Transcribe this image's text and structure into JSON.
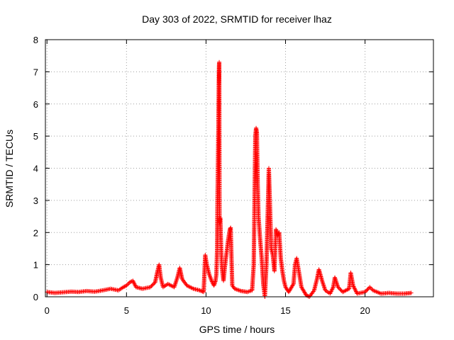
{
  "chart_data": {
    "type": "scatter",
    "title": "Day 303 of 2022, SRMTID for receiver lhaz",
    "xlabel": "GPS time / hours",
    "ylabel": "SRMTID / TECUs",
    "xlim": [
      -0.1,
      24.3
    ],
    "ylim": [
      0,
      8
    ],
    "xticks": [
      0,
      5,
      10,
      15,
      20
    ],
    "xtick_labels": [
      "0",
      "5",
      "10",
      "15",
      "20"
    ],
    "yticks": [
      0,
      1,
      2,
      3,
      4,
      5,
      6,
      7,
      8
    ],
    "ytick_labels": [
      "0",
      "1",
      "2",
      "3",
      "4",
      "5",
      "6",
      "7",
      "8"
    ],
    "grid": true,
    "marker": "plus",
    "color": "#ff0000",
    "series": [
      {
        "name": "SRMTID",
        "anchors": [
          [
            0.0,
            0.15
          ],
          [
            0.5,
            0.12
          ],
          [
            1.0,
            0.14
          ],
          [
            1.5,
            0.16
          ],
          [
            2.0,
            0.15
          ],
          [
            2.5,
            0.18
          ],
          [
            3.0,
            0.16
          ],
          [
            3.5,
            0.2
          ],
          [
            4.0,
            0.25
          ],
          [
            4.5,
            0.2
          ],
          [
            4.8,
            0.3
          ],
          [
            5.0,
            0.35
          ],
          [
            5.2,
            0.45
          ],
          [
            5.4,
            0.5
          ],
          [
            5.6,
            0.3
          ],
          [
            6.0,
            0.25
          ],
          [
            6.5,
            0.3
          ],
          [
            6.8,
            0.45
          ],
          [
            6.95,
            0.8
          ],
          [
            7.05,
            1.0
          ],
          [
            7.15,
            0.6
          ],
          [
            7.3,
            0.3
          ],
          [
            7.6,
            0.4
          ],
          [
            8.0,
            0.3
          ],
          [
            8.2,
            0.6
          ],
          [
            8.35,
            0.9
          ],
          [
            8.5,
            0.55
          ],
          [
            8.8,
            0.35
          ],
          [
            9.2,
            0.25
          ],
          [
            9.6,
            0.2
          ],
          [
            9.85,
            0.15
          ],
          [
            9.95,
            1.3
          ],
          [
            10.05,
            1.0
          ],
          [
            10.2,
            0.7
          ],
          [
            10.35,
            0.5
          ],
          [
            10.5,
            0.35
          ],
          [
            10.6,
            0.5
          ],
          [
            10.65,
            0.7
          ],
          [
            10.7,
            1.5
          ],
          [
            10.72,
            2.9
          ],
          [
            10.74,
            3.7
          ],
          [
            10.76,
            4.5
          ],
          [
            10.78,
            5.25
          ],
          [
            10.79,
            5.9
          ],
          [
            10.8,
            6.5
          ],
          [
            10.81,
            6.95
          ],
          [
            10.82,
            7.2
          ],
          [
            10.83,
            7.3
          ],
          [
            10.85,
            2.3
          ],
          [
            10.9,
            2.45
          ],
          [
            10.95,
            1.5
          ],
          [
            11.0,
            0.9
          ],
          [
            11.1,
            0.5
          ],
          [
            11.2,
            1.0
          ],
          [
            11.3,
            1.4
          ],
          [
            11.4,
            1.8
          ],
          [
            11.5,
            2.1
          ],
          [
            11.55,
            2.15
          ],
          [
            11.65,
            0.35
          ],
          [
            11.8,
            0.25
          ],
          [
            12.2,
            0.18
          ],
          [
            12.6,
            0.15
          ],
          [
            12.9,
            0.2
          ],
          [
            13.0,
            1.0
          ],
          [
            13.05,
            2.9
          ],
          [
            13.1,
            5.0
          ],
          [
            13.15,
            5.25
          ],
          [
            13.2,
            5.1
          ],
          [
            13.25,
            3.5
          ],
          [
            13.3,
            2.5
          ],
          [
            13.4,
            1.8
          ],
          [
            13.5,
            1.2
          ],
          [
            13.55,
            0.8
          ],
          [
            13.6,
            0.4
          ],
          [
            13.7,
            0.0
          ],
          [
            13.8,
            1.0
          ],
          [
            13.9,
            3.0
          ],
          [
            13.95,
            4.0
          ],
          [
            14.0,
            3.2
          ],
          [
            14.1,
            1.5
          ],
          [
            14.2,
            1.3
          ],
          [
            14.3,
            0.8
          ],
          [
            14.4,
            2.1
          ],
          [
            14.5,
            1.9
          ],
          [
            14.6,
            2.0
          ],
          [
            14.7,
            1.2
          ],
          [
            14.8,
            0.8
          ],
          [
            14.9,
            0.5
          ],
          [
            15.0,
            0.3
          ],
          [
            15.2,
            0.15
          ],
          [
            15.5,
            0.4
          ],
          [
            15.6,
            1.0
          ],
          [
            15.7,
            1.2
          ],
          [
            15.8,
            0.9
          ],
          [
            16.0,
            0.3
          ],
          [
            16.3,
            0.05
          ],
          [
            16.5,
            0.0
          ],
          [
            16.8,
            0.2
          ],
          [
            17.0,
            0.6
          ],
          [
            17.1,
            0.85
          ],
          [
            17.3,
            0.5
          ],
          [
            17.5,
            0.2
          ],
          [
            17.8,
            0.1
          ],
          [
            18.0,
            0.3
          ],
          [
            18.1,
            0.6
          ],
          [
            18.3,
            0.3
          ],
          [
            18.6,
            0.15
          ],
          [
            19.0,
            0.25
          ],
          [
            19.1,
            0.75
          ],
          [
            19.25,
            0.35
          ],
          [
            19.5,
            0.1
          ],
          [
            20.0,
            0.15
          ],
          [
            20.3,
            0.3
          ],
          [
            20.5,
            0.2
          ],
          [
            21.0,
            0.1
          ],
          [
            21.5,
            0.12
          ],
          [
            22.0,
            0.1
          ],
          [
            22.5,
            0.1
          ],
          [
            22.9,
            0.12
          ]
        ]
      }
    ]
  }
}
